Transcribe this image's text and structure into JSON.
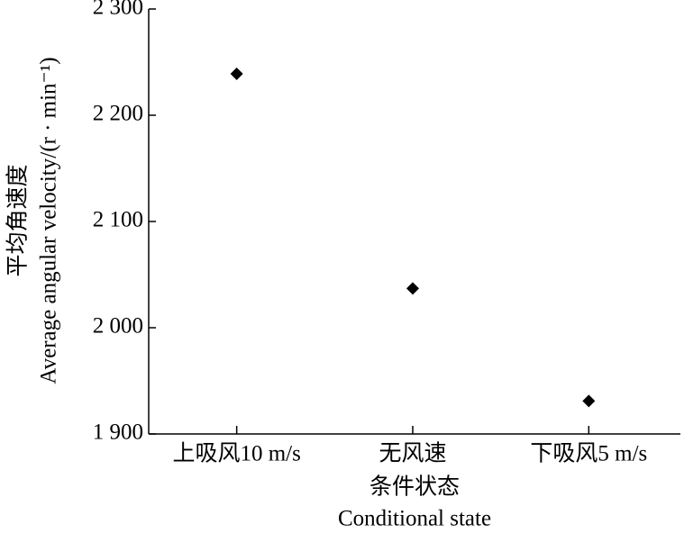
{
  "chart_data": {
    "type": "scatter",
    "categories": [
      "上吸风10 m/s",
      "无风速",
      "下吸风5 m/s"
    ],
    "values": [
      2239,
      2037,
      1931
    ],
    "color": "#000000",
    "x_label_zh": "条件状态",
    "x_label_en": "Conditional state",
    "y_label_zh": "平均角速度",
    "y_label_en": "Average angular velocity/(r · min⁻¹)",
    "ylim": [
      1900,
      2300
    ],
    "yticks": [
      {
        "value": 1900,
        "label": "1 900"
      },
      {
        "value": 2000,
        "label": "2 000"
      },
      {
        "value": 2100,
        "label": "2 100"
      },
      {
        "value": 2200,
        "label": "2 200"
      },
      {
        "value": 2300,
        "label": "2 300"
      }
    ],
    "grid": false
  }
}
